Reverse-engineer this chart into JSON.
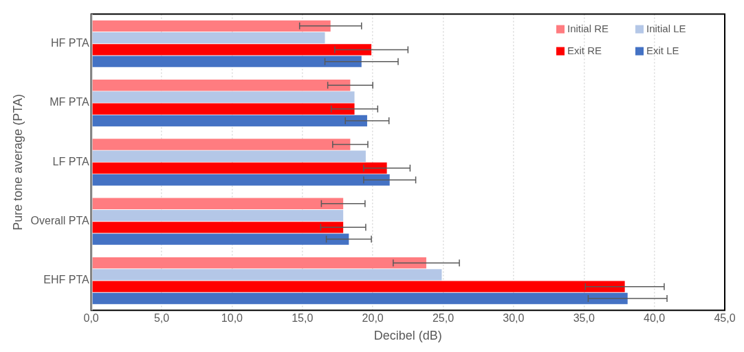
{
  "chart_data": {
    "type": "bar",
    "orientation": "horizontal",
    "xlabel": "Decibel (dB)",
    "ylabel": "Pure tone average (PTA)",
    "categories": [
      "HF PTA",
      "MF PTA",
      "LF PTA",
      "Overall PTA",
      "EHF PTA"
    ],
    "series": [
      {
        "name": "Initial RE",
        "color": "#ff7c80",
        "values": [
          17.0,
          18.4,
          18.4,
          17.9,
          23.8
        ],
        "errors": [
          2.2,
          1.6,
          1.25,
          1.55,
          2.35
        ]
      },
      {
        "name": "Initial LE",
        "color": "#b4c7e7",
        "values": [
          16.6,
          18.7,
          19.5,
          17.9,
          24.9
        ]
      },
      {
        "name": "Exit RE",
        "color": "#ff0000",
        "values": [
          19.9,
          18.7,
          21.0,
          17.9,
          37.9
        ],
        "errors": [
          2.6,
          1.65,
          1.65,
          1.6,
          2.8
        ]
      },
      {
        "name": "Exit LE",
        "color": "#4472c4",
        "values": [
          19.2,
          19.6,
          21.2,
          18.3,
          38.1
        ],
        "errors": [
          2.6,
          1.55,
          1.85,
          1.6,
          2.8
        ]
      }
    ],
    "xlim": [
      0,
      45
    ],
    "xticks": [
      {
        "value": 0,
        "label": "0,0"
      },
      {
        "value": 5,
        "label": "5,0"
      },
      {
        "value": 10,
        "label": "10,0"
      },
      {
        "value": 15,
        "label": "15,0"
      },
      {
        "value": 20,
        "label": "20,0"
      },
      {
        "value": 25,
        "label": "25,0"
      },
      {
        "value": 30,
        "label": "30,0"
      },
      {
        "value": 35,
        "label": "35,0"
      },
      {
        "value": 40,
        "label": "40,0"
      },
      {
        "value": 45,
        "label": "45,0"
      }
    ],
    "grid": "x",
    "legend": "top right"
  }
}
